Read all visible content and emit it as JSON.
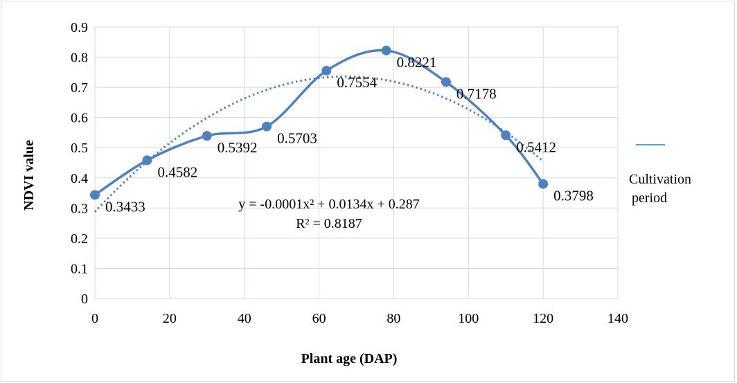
{
  "chart_data": {
    "type": "line",
    "xlabel": "Plant age (DAP)",
    "ylabel": "NDVI value",
    "xlim": [
      0,
      140
    ],
    "ylim": [
      0,
      0.9
    ],
    "x_ticks": [
      "0",
      "20",
      "40",
      "60",
      "80",
      "100",
      "120",
      "140"
    ],
    "y_ticks": [
      "0",
      "0.1",
      "0.2",
      "0.3",
      "0.4",
      "0.5",
      "0.6",
      "0.7",
      "0.8",
      "0.9"
    ],
    "grid": "horizontal and vertical",
    "legend_position": "right",
    "series": [
      {
        "name": "Cultivation period",
        "color": "#4f81bd",
        "x": [
          0,
          14,
          30,
          46,
          62,
          78,
          94,
          110,
          120
        ],
        "y": [
          0.3433,
          0.4582,
          0.5392,
          0.5703,
          0.7554,
          0.8221,
          0.7178,
          0.5412,
          0.3798
        ],
        "data_labels": [
          "0.3433",
          "0.4582",
          "0.5392",
          "0.5703",
          "0.7554",
          "0.8221",
          "0.7178",
          "0.5412",
          "0.3798"
        ]
      }
    ],
    "trendline": {
      "type": "polynomial",
      "coefficients": [
        -0.0001,
        0.0134,
        0.287
      ],
      "x_range": [
        0,
        120
      ],
      "style": "dotted",
      "equation": "y = -0.0001x² + 0.0134x + 0.287",
      "r_squared": "R² = 0.8187"
    }
  }
}
